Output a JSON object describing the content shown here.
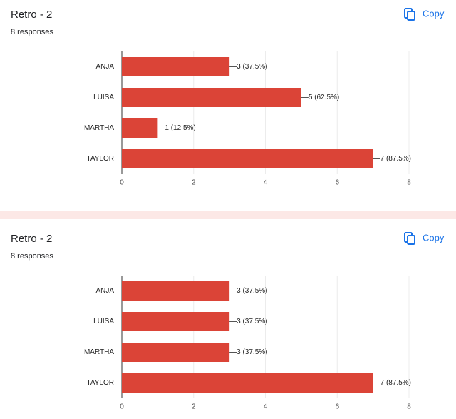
{
  "chart_data": [
    {
      "type": "bar",
      "orientation": "horizontal",
      "title": "Retro - 2",
      "subtitle": "8 responses",
      "action_label": "Copy",
      "categories": [
        "ANJA",
        "LUISA",
        "MARTHA",
        "TAYLOR"
      ],
      "values": [
        3,
        5,
        1,
        7
      ],
      "value_labels": [
        "3 (37.5%)",
        "5 (62.5%)",
        "1 (12.5%)",
        "7 (87.5%)"
      ],
      "color": "#db4437",
      "xlim": [
        0,
        8
      ],
      "xticks": [
        0,
        2,
        4,
        6,
        8
      ],
      "grid": true
    },
    {
      "type": "bar",
      "orientation": "horizontal",
      "title": "Retro - 2",
      "subtitle": "8 responses",
      "action_label": "Copy",
      "categories": [
        "ANJA",
        "LUISA",
        "MARTHA",
        "TAYLOR"
      ],
      "values": [
        3,
        3,
        3,
        7
      ],
      "value_labels": [
        "3 (37.5%)",
        "3 (37.5%)",
        "3 (37.5%)",
        "7 (87.5%)"
      ],
      "color": "#db4437",
      "xlim": [
        0,
        8
      ],
      "xticks": [
        0,
        2,
        4,
        6,
        8
      ],
      "grid": true
    }
  ]
}
